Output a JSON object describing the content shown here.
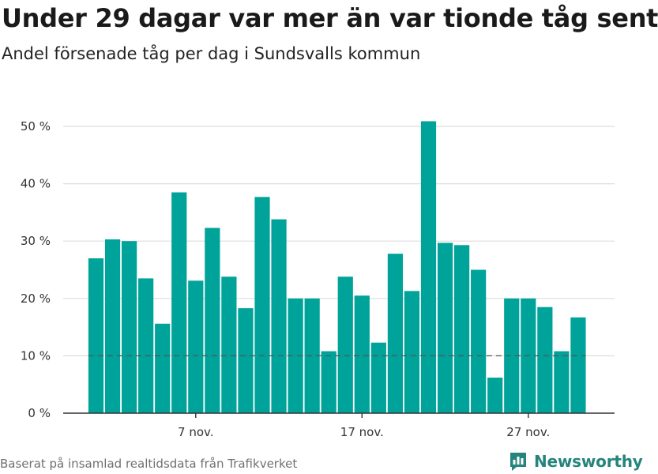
{
  "title": "Under 29 dagar var mer än var tionde tåg sent",
  "subtitle": "Andel försenade tåg per dag i Sundsvalls kommun",
  "footer": {
    "source": "Baserat på insamlad realtidsdata från Trafikverket"
  },
  "brand": {
    "name": "Newsworthy",
    "icon": "newsworthy-chart-icon",
    "color": "#25857c"
  },
  "colors": {
    "bar": "#00a39a",
    "grid": "#dddddd",
    "axis": "#333333",
    "reference": "#555555"
  },
  "chart_data": {
    "type": "bar",
    "x_type": "date",
    "x": [
      "2020-11-01",
      "2020-11-02",
      "2020-11-03",
      "2020-11-04",
      "2020-11-05",
      "2020-11-06",
      "2020-11-07",
      "2020-11-08",
      "2020-11-09",
      "2020-11-10",
      "2020-11-11",
      "2020-11-12",
      "2020-11-13",
      "2020-11-14",
      "2020-11-15",
      "2020-11-16",
      "2020-11-17",
      "2020-11-18",
      "2020-11-19",
      "2020-11-20",
      "2020-11-21",
      "2020-11-22",
      "2020-11-23",
      "2020-11-24",
      "2020-11-25",
      "2020-11-26",
      "2020-11-27",
      "2020-11-28",
      "2020-11-29",
      "2020-11-30"
    ],
    "values": [
      27,
      30.3,
      30,
      23.5,
      15.6,
      38.5,
      23.1,
      32.3,
      23.8,
      18.3,
      37.7,
      33.8,
      20,
      20,
      10.8,
      23.8,
      20.5,
      12.3,
      27.8,
      21.3,
      50.9,
      29.7,
      29.3,
      25,
      6.2,
      20,
      20,
      18.5,
      10.8,
      16.7
    ],
    "reference_line": 10,
    "y_ticks": [
      "0 %",
      "10 %",
      "20 %",
      "30 %",
      "40 %",
      "50 %"
    ],
    "y_tick_values": [
      0,
      10,
      20,
      30,
      40,
      50
    ],
    "x_ticks": [
      "7 nov.",
      "17 nov.",
      "27 nov."
    ],
    "x_tick_positions": [
      "2020-11-07",
      "2020-11-17",
      "2020-11-27"
    ],
    "ylim": [
      0,
      50
    ],
    "grid": true,
    "legend": false
  }
}
